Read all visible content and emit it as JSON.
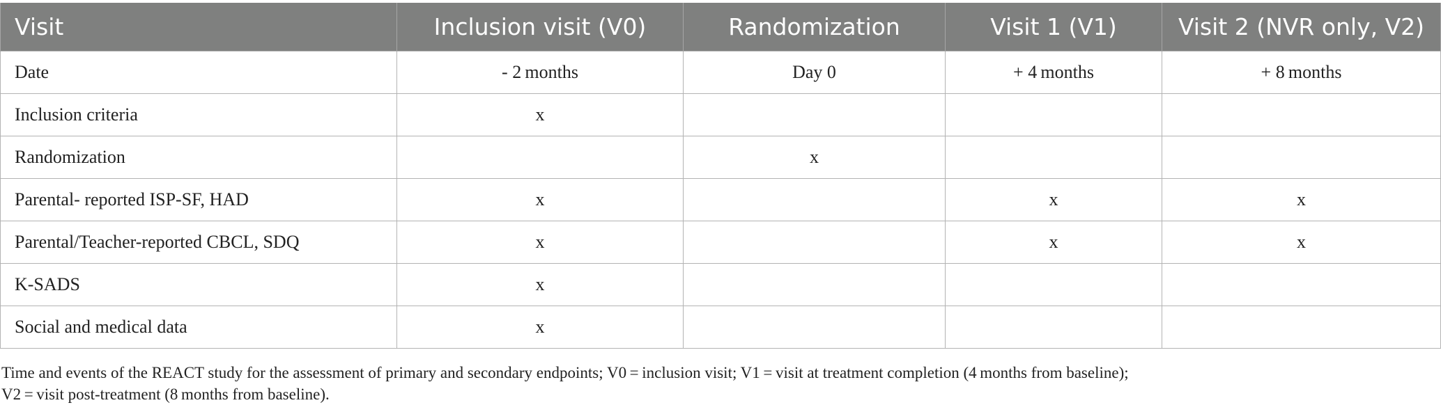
{
  "table": {
    "headers": [
      "Visit",
      "Inclusion visit (V0)",
      "Randomization",
      "Visit 1 (V1)",
      "Visit 2 (NVR only, V2)"
    ],
    "rows": [
      [
        "Date",
        "- 2 months",
        "Day 0",
        "+ 4 months",
        "+ 8 months"
      ],
      [
        "Inclusion criteria",
        "x",
        "",
        "",
        ""
      ],
      [
        "Randomization",
        "",
        "x",
        "",
        ""
      ],
      [
        "Parental- reported ISP-SF, HAD",
        "x",
        "",
        "x",
        "x"
      ],
      [
        "Parental/Teacher-reported CBCL, SDQ",
        "x",
        "",
        "x",
        "x"
      ],
      [
        "K-SADS",
        "x",
        "",
        "",
        ""
      ],
      [
        "Social and medical data",
        "x",
        "",
        "",
        ""
      ]
    ]
  },
  "caption": {
    "line1": "Time and events of the REACT study for the assessment of primary and secondary endpoints; V0 = inclusion visit; V1 = visit at treatment completion (4 months from baseline);",
    "line2": "V2 = visit post-treatment (8 months from baseline)."
  }
}
